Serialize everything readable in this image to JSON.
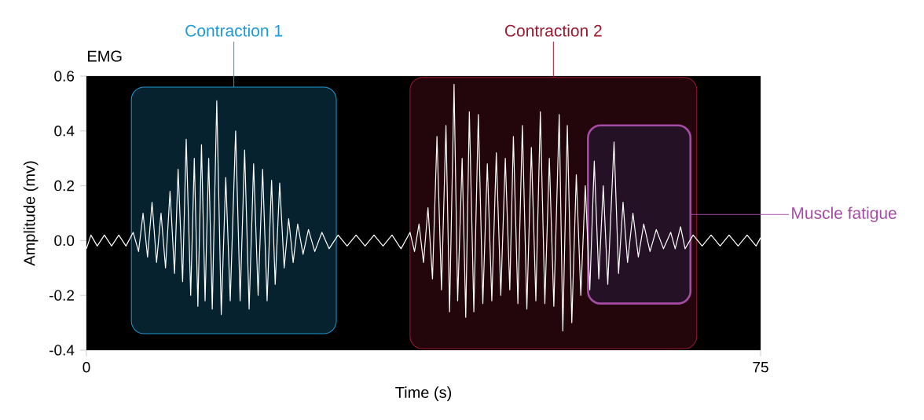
{
  "chart_data": {
    "type": "line",
    "title": "EMG",
    "xlabel": "Time (s)",
    "ylabel": "Amplitude (mv)",
    "x": [
      0,
      0.5,
      1.2,
      2,
      2.8,
      3.6,
      4.4,
      5.2,
      5.8,
      6.3,
      6.8,
      7.3,
      7.8,
      8.3,
      8.8,
      9.3,
      9.8,
      10.2,
      10.7,
      11.1,
      11.6,
      12.0,
      12.4,
      12.8,
      13.2,
      13.6,
      14.0,
      14.5,
      15.0,
      15.5,
      16.0,
      16.6,
      17.1,
      17.6,
      18.1,
      18.6,
      19.1,
      19.6,
      20.1,
      20.6,
      21.0,
      21.5,
      22.0,
      22.5,
      23.0,
      23.5,
      24.1,
      24.7,
      25.4,
      26.2,
      27,
      28,
      29,
      30,
      31,
      32,
      33,
      34,
      35,
      36,
      36.5,
      37.0,
      37.5,
      38.0,
      38.5,
      39.0,
      39.5,
      40.0,
      40.4,
      40.9,
      41.3,
      41.8,
      42.2,
      42.6,
      43.1,
      43.6,
      44.1,
      44.6,
      45.1,
      45.6,
      46.1,
      46.6,
      47.1,
      47.5,
      48.0,
      48.5,
      49.0,
      49.5,
      50.0,
      50.5,
      51.0,
      51.5,
      52.0,
      52.6,
      53.0,
      53.5,
      54.0,
      54.5,
      55.0,
      55.5,
      56.0,
      56.5,
      57.0,
      57.5,
      58.0,
      58.7,
      59.2,
      59.7,
      60.2,
      60.8,
      61.4,
      62.0,
      62.7,
      63.4,
      64.2,
      65.0,
      65.5,
      66.1,
      66.6,
      67.5,
      68.5,
      69.5,
      70.5,
      71.5,
      72.5,
      73.5,
      74.5,
      75
    ],
    "series": [
      {
        "color": "#ffffff",
        "values": [
          -0.03,
          0.02,
          -0.02,
          0.02,
          -0.02,
          0.02,
          -0.02,
          0.03,
          -0.04,
          0.1,
          -0.06,
          0.14,
          -0.08,
          0.1,
          -0.1,
          0.18,
          -0.12,
          0.26,
          -0.15,
          0.37,
          -0.2,
          0.3,
          -0.24,
          0.35,
          -0.22,
          0.3,
          -0.25,
          0.51,
          -0.27,
          0.23,
          -0.22,
          0.4,
          -0.22,
          0.33,
          -0.25,
          0.28,
          -0.2,
          0.26,
          -0.22,
          0.22,
          -0.16,
          0.21,
          -0.1,
          0.08,
          -0.08,
          0.06,
          -0.05,
          0.04,
          -0.04,
          0.03,
          -0.03,
          0.02,
          -0.02,
          0.02,
          -0.02,
          0.02,
          -0.02,
          0.02,
          -0.03,
          0.03,
          -0.04,
          0.06,
          -0.08,
          0.12,
          -0.14,
          0.38,
          -0.18,
          0.42,
          -0.26,
          0.57,
          -0.22,
          0.3,
          -0.28,
          0.47,
          -0.26,
          0.46,
          -0.23,
          0.28,
          -0.22,
          0.32,
          -0.2,
          0.3,
          -0.18,
          0.38,
          -0.23,
          0.42,
          -0.25,
          0.34,
          -0.22,
          0.47,
          -0.23,
          0.3,
          -0.24,
          0.46,
          -0.33,
          0.42,
          -0.3,
          0.24,
          -0.2,
          0.2,
          -0.18,
          0.29,
          -0.14,
          0.2,
          -0.16,
          0.36,
          -0.12,
          0.14,
          -0.08,
          0.1,
          -0.06,
          0.06,
          -0.04,
          0.04,
          -0.03,
          0.03,
          -0.03,
          0.05,
          -0.03,
          0.02,
          -0.02,
          0.02,
          -0.02,
          0.02,
          -0.02,
          0.02,
          -0.02,
          0.01
        ]
      }
    ],
    "xlim": [
      0,
      75
    ],
    "xticks": [
      0,
      75
    ],
    "ylim": [
      -0.4,
      0.6
    ],
    "yticks": [
      -0.4,
      -0.2,
      {
        "value": 0,
        "label": "0.0"
      },
      0.2,
      0.4,
      0.6
    ],
    "bands": [
      {
        "axis": "x",
        "from": 5.0,
        "to": 27.8,
        "label": "Contraction 1",
        "color": "#1e9ad6"
      },
      {
        "axis": "x",
        "from": 36.0,
        "to": 67.9,
        "label": "Contraction 2",
        "color": "#9b1b30"
      },
      {
        "axis": "x",
        "from": 55.8,
        "to": 67.2,
        "label": "Muscle fatigue",
        "color": "#a64ca6"
      }
    ]
  }
}
